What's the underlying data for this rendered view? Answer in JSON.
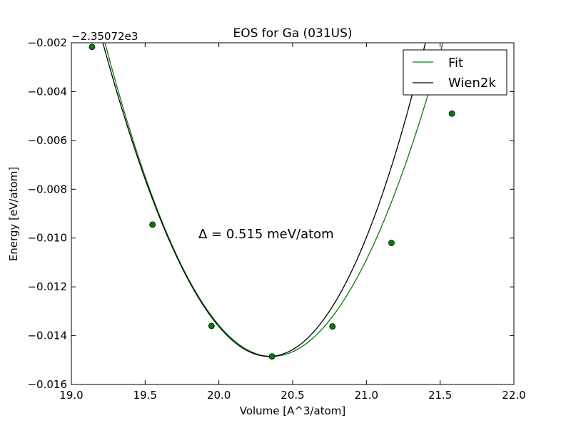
{
  "chart_data": {
    "type": "line",
    "title": "EOS for Ga (031US)",
    "xlabel": "Volume [A^3/atom]",
    "ylabel": "Energy [eV/atom]",
    "offset_label": "−2.35072e3",
    "annotation": "Δ = 0.515 meV/atom",
    "xlim": [
      19.0,
      22.0
    ],
    "ylim": [
      -0.016,
      -0.002
    ],
    "x_ticks": [
      19.0,
      19.5,
      20.0,
      20.5,
      21.0,
      21.5,
      22.0
    ],
    "x_tick_labels": [
      "19.0",
      "19.5",
      "20.0",
      "20.5",
      "21.0",
      "21.5",
      "22.0"
    ],
    "y_ticks": [
      -0.016,
      -0.014,
      -0.012,
      -0.01,
      -0.008,
      -0.006,
      -0.004,
      -0.002
    ],
    "y_tick_labels": [
      "−0.016",
      "−0.014",
      "−0.012",
      "−0.010",
      "−0.008",
      "−0.006",
      "−0.004",
      "−0.002"
    ],
    "grid": false,
    "legend": "top-right",
    "series": [
      {
        "name": "Fit",
        "color": "#008000",
        "kind": "curve",
        "model": {
          "v0": 20.36,
          "e0": -0.01485,
          "b": 0.0098,
          "b3": -0.0002
        },
        "x_range": [
          19.14,
          21.58
        ]
      },
      {
        "name": "Wien2k",
        "color": "#000000",
        "kind": "curve",
        "model": {
          "v0": 20.34,
          "e0": -0.01485,
          "b": 0.0108,
          "b3": 0.0006
        },
        "x_range": [
          19.14,
          21.6
        ]
      },
      {
        "name": "Fit points",
        "color": "#008000",
        "kind": "points",
        "x": [
          19.14,
          19.55,
          19.95,
          20.36,
          20.77,
          21.17,
          21.58
        ],
        "y": [
          -0.00217,
          -0.00945,
          -0.0136,
          -0.01485,
          -0.01362,
          -0.0102,
          -0.0049
        ]
      }
    ]
  }
}
